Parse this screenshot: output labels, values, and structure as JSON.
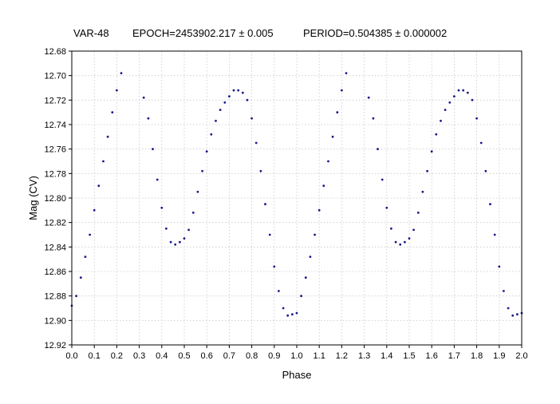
{
  "header": {
    "star": "VAR-48",
    "epoch": "EPOCH=2453902.217 ± 0.005",
    "period": "PERIOD=0.504385 ± 0.000002"
  },
  "chart_data": {
    "type": "scatter",
    "xlabel": "Phase",
    "ylabel": "Mag (CV)",
    "xlim": [
      0.0,
      2.0
    ],
    "ylim": [
      12.68,
      12.92
    ],
    "y_inverted": true,
    "grid": true,
    "point_color": "#1a1a8c",
    "x_ticks": [
      "0.0",
      "0.1",
      "0.2",
      "0.3",
      "0.4",
      "0.5",
      "0.6",
      "0.7",
      "0.8",
      "0.9",
      "1.0",
      "1.1",
      "1.2",
      "1.3",
      "1.4",
      "1.5",
      "1.6",
      "1.7",
      "1.8",
      "1.9",
      "2.0"
    ],
    "y_ticks": [
      "12.68",
      "12.70",
      "12.72",
      "12.74",
      "12.76",
      "12.78",
      "12.80",
      "12.82",
      "12.84",
      "12.86",
      "12.88",
      "12.90",
      "12.92"
    ],
    "series": [
      {
        "phase": [
          0.0,
          0.02,
          0.04,
          0.06,
          0.08,
          0.1,
          0.12,
          0.14,
          0.16,
          0.18,
          0.2,
          0.22,
          0.32,
          0.34,
          0.36,
          0.38,
          0.4,
          0.42,
          0.44,
          0.46,
          0.48,
          0.5,
          0.52,
          0.54,
          0.56,
          0.58,
          0.6,
          0.62,
          0.64,
          0.66,
          0.68,
          0.7,
          0.72,
          0.74,
          0.76,
          0.78,
          0.8,
          0.82,
          0.84,
          0.86,
          0.88,
          0.9,
          0.92,
          0.94,
          0.96,
          0.98,
          1.0,
          1.02,
          1.04,
          1.06,
          1.08,
          1.1,
          1.12,
          1.14,
          1.16,
          1.18,
          1.2,
          1.22,
          1.32,
          1.34,
          1.36,
          1.38,
          1.4,
          1.42,
          1.44,
          1.46,
          1.48,
          1.5,
          1.52,
          1.54,
          1.56,
          1.58,
          1.6,
          1.62,
          1.64,
          1.66,
          1.68,
          1.7,
          1.72,
          1.74,
          1.76,
          1.78,
          1.8,
          1.82,
          1.84,
          1.86,
          1.88,
          1.9,
          1.92,
          1.94,
          1.96,
          1.98,
          2.0
        ],
        "mag": [
          12.888,
          12.88,
          12.865,
          12.848,
          12.83,
          12.81,
          12.79,
          12.77,
          12.75,
          12.73,
          12.712,
          12.698,
          12.718,
          12.735,
          12.76,
          12.785,
          12.808,
          12.825,
          12.836,
          12.838,
          12.836,
          12.833,
          12.826,
          12.812,
          12.795,
          12.778,
          12.762,
          12.748,
          12.737,
          12.728,
          12.722,
          12.717,
          12.712,
          12.712,
          12.714,
          12.72,
          12.735,
          12.755,
          12.778,
          12.805,
          12.83,
          12.856,
          12.876,
          12.89,
          12.896,
          12.895,
          12.894,
          12.88,
          12.865,
          12.848,
          12.83,
          12.81,
          12.79,
          12.77,
          12.75,
          12.73,
          12.712,
          12.698,
          12.718,
          12.735,
          12.76,
          12.785,
          12.808,
          12.825,
          12.836,
          12.838,
          12.836,
          12.833,
          12.826,
          12.812,
          12.795,
          12.778,
          12.762,
          12.748,
          12.737,
          12.728,
          12.722,
          12.717,
          12.712,
          12.712,
          12.714,
          12.72,
          12.735,
          12.755,
          12.778,
          12.805,
          12.83,
          12.856,
          12.876,
          12.89,
          12.896,
          12.895,
          12.894
        ]
      }
    ]
  }
}
